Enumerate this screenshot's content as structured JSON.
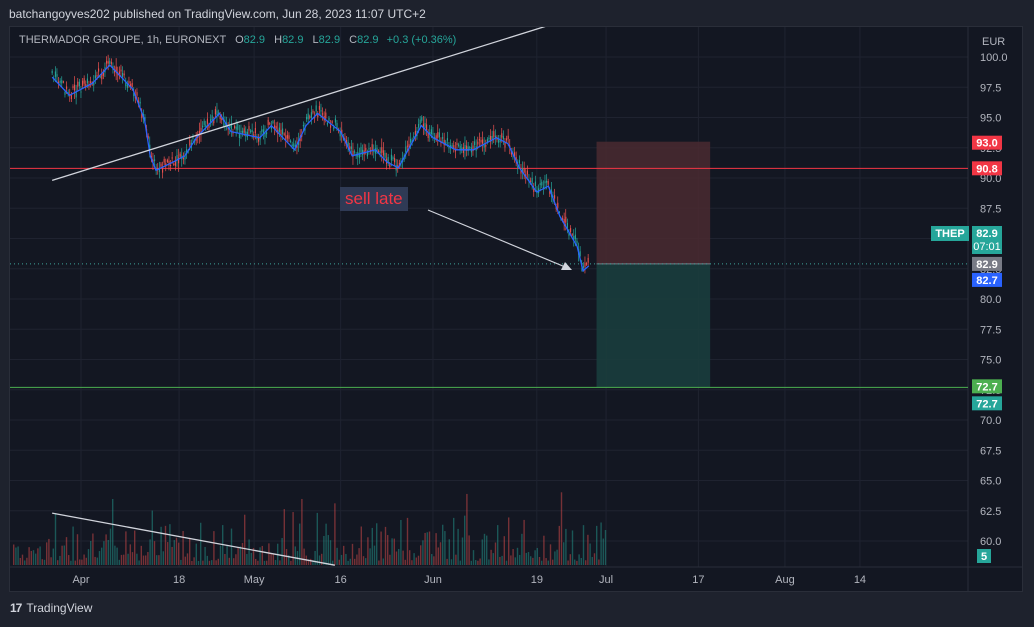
{
  "publisher_line": "batchangoyves202 published on TradingView.com, Jun 28, 2023 11:07 UTC+2",
  "legend": {
    "symbol": "THERMADOR GROUPE, 1h, EURONEXT",
    "o_label": "O",
    "o": "82.9",
    "h_label": "H",
    "h": "82.9",
    "l_label": "L",
    "l": "82.9",
    "c_label": "C",
    "c": "82.9",
    "change": "+0.3 (+0.36%)"
  },
  "currency": "EUR",
  "annotation": "sell late",
  "footer_brand": "TradingView",
  "footer_logo": "17",
  "colors": {
    "background": "#131722",
    "candle_up": "#26a69a",
    "candle_down": "#ef5350",
    "ma_line": "#2962ff",
    "resistance": "#f23645",
    "support": "#4caf50",
    "stop_zone": "#4a2a30",
    "target_zone": "#1a3d3d"
  },
  "price_badges": {
    "stop": "93.0",
    "resistance": "90.8",
    "ticker": "THEP",
    "ticker_price": "82.9",
    "countdown": "07:01",
    "last": "82.9",
    "ma": "82.7",
    "target": "72.7",
    "target2": "72.7",
    "volume": "5"
  },
  "chart_data": {
    "type": "line",
    "title": "THERMADOR GROUPE, 1h, EURONEXT",
    "xlabel": "",
    "ylabel": "",
    "ylim": [
      57.8,
      101.2
    ],
    "y_ticks": [
      60.0,
      62.5,
      65.0,
      67.5,
      70.0,
      72.5,
      75.0,
      77.5,
      80.0,
      82.5,
      85.0,
      87.5,
      90.0,
      92.5,
      95.0,
      97.5,
      100.0
    ],
    "x_ticks": [
      "Apr",
      "18",
      "May",
      "16",
      "Jun",
      "19",
      "Jul",
      "17",
      "Aug",
      "14"
    ],
    "price_path": [
      [
        "Mar 27",
        98.5
      ],
      [
        "Mar 30",
        97.0
      ],
      [
        "Apr 3",
        98.0
      ],
      [
        "Apr 6",
        99.5
      ],
      [
        "Apr 10",
        97.5
      ],
      [
        "Apr 12",
        95.0
      ],
      [
        "Apr 13",
        92.0
      ],
      [
        "Apr 14",
        90.8
      ],
      [
        "Apr 17",
        91.5
      ],
      [
        "Apr 19",
        92.0
      ],
      [
        "Apr 21",
        93.5
      ],
      [
        "Apr 25",
        95.5
      ],
      [
        "Apr 27",
        94.0
      ],
      [
        "May 2",
        93.5
      ],
      [
        "May 4",
        94.5
      ],
      [
        "May 8",
        92.5
      ],
      [
        "May 10",
        94.5
      ],
      [
        "May 12",
        95.5
      ],
      [
        "May 16",
        94.0
      ],
      [
        "May 18",
        92.0
      ],
      [
        "May 22",
        92.5
      ],
      [
        "May 24",
        91.5
      ],
      [
        "May 26",
        91.0
      ],
      [
        "May 30",
        94.5
      ],
      [
        "Jun 1",
        93.5
      ],
      [
        "Jun 5",
        92.5
      ],
      [
        "Jun 8",
        92.5
      ],
      [
        "Jun 12",
        93.5
      ],
      [
        "Jun 14",
        93.0
      ],
      [
        "Jun 16",
        91.0
      ],
      [
        "Jun 19",
        89.0
      ],
      [
        "Jun 21",
        89.5
      ],
      [
        "Jun 23",
        87.0
      ],
      [
        "Jun 26",
        84.5
      ],
      [
        "Jun 27",
        82.5
      ],
      [
        "Jun 28",
        82.9
      ]
    ],
    "horizontal_levels": [
      {
        "label": "90.8",
        "value": 90.8,
        "color": "#f23645"
      },
      {
        "label": "72.7",
        "value": 72.7,
        "color": "#4caf50"
      }
    ],
    "position": {
      "entry": 82.9,
      "stop": 93.0,
      "target": 72.7,
      "start": "Jun 29",
      "end": "Jul 18"
    },
    "trend_lines": [
      {
        "from": [
          "Mar 27",
          89.8
        ],
        "to": [
          "Jun 27",
          103.5
        ]
      },
      {
        "from": [
          "Mar 27",
          62.3
        ],
        "to": [
          "May 15",
          58.0
        ]
      }
    ],
    "grid": true,
    "legend_position": "top-left"
  }
}
